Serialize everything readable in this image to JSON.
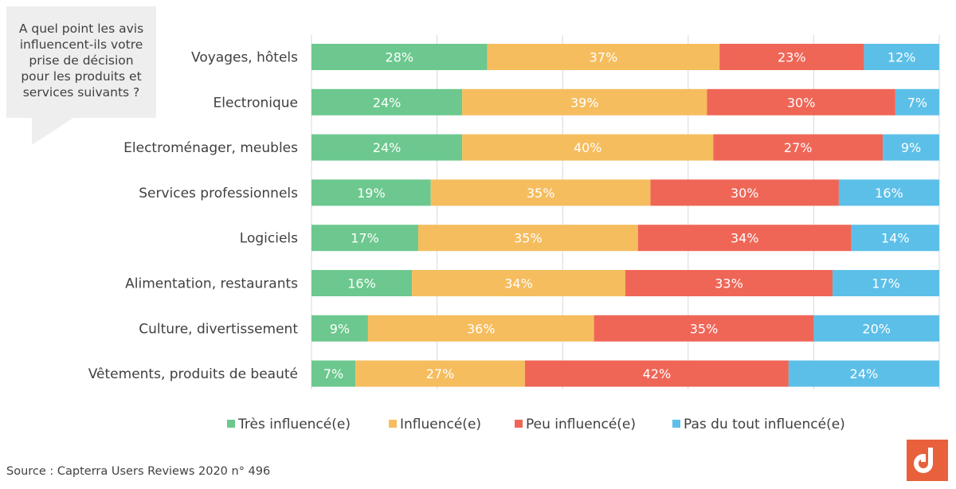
{
  "question": "A quel point les avis\ninfluencent-ils votre\nprise de décision\npour les produits et\nservices suivants ?",
  "source": "Source : Capterra Users Reviews 2020 n° 496",
  "logo_icon": "capterra-logo-icon",
  "chart_data": {
    "type": "bar",
    "orientation": "horizontal",
    "stacked": true,
    "title": "",
    "xlabel": "",
    "ylabel": "",
    "xlim": [
      0,
      100
    ],
    "grid": true,
    "legend_position": "bottom",
    "categories": [
      "Voyages, hôtels",
      "Electronique",
      "Electroménager, meubles",
      "Services professionnels",
      "Logiciels",
      "Alimentation, restaurants",
      "Culture, divertissement",
      "Vêtements, produits de beauté"
    ],
    "series": [
      {
        "name": "Très influencé(e)",
        "color": "#6cc88e",
        "values": [
          28,
          24,
          24,
          19,
          17,
          16,
          9,
          7
        ]
      },
      {
        "name": "Influencé(e)",
        "color": "#f6bd5e",
        "values": [
          37,
          39,
          40,
          35,
          35,
          34,
          36,
          27
        ]
      },
      {
        "name": "Peu influencé(e)",
        "color": "#ef6657",
        "values": [
          23,
          30,
          27,
          30,
          34,
          33,
          35,
          42
        ]
      },
      {
        "name": "Pas du tout influencé(e)",
        "color": "#5cbfe8",
        "values": [
          12,
          7,
          9,
          16,
          14,
          17,
          20,
          24
        ]
      }
    ]
  }
}
